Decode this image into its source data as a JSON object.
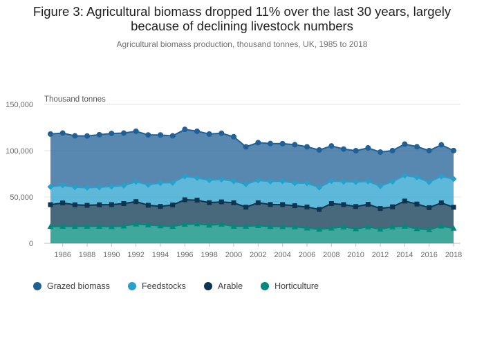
{
  "title_lines": [
    "Figure 3: Agricultural biomass dropped 11% over the last 30 years, largely",
    "because of declining livestock numbers"
  ],
  "subtitle": "Agricultural biomass production, thousand tonnes, UK, 1985 to 2018",
  "chart_data": {
    "type": "area",
    "stacked": true,
    "ylabel": "Thousand tonnes",
    "xlabel": "",
    "ylim": [
      0,
      150000
    ],
    "y_ticks": [
      0,
      50000,
      100000,
      150000
    ],
    "y_tick_labels": [
      "0",
      "50,000",
      "100,000",
      "150,000"
    ],
    "x_ticks": [
      1986,
      1988,
      1990,
      1992,
      1994,
      1996,
      1998,
      2000,
      2002,
      2004,
      2006,
      2008,
      2010,
      2012,
      2014,
      2016,
      2018
    ],
    "x": [
      1985,
      1986,
      1987,
      1988,
      1989,
      1990,
      1991,
      1992,
      1993,
      1994,
      1995,
      1996,
      1997,
      1998,
      1999,
      2000,
      2001,
      2002,
      2003,
      2004,
      2005,
      2006,
      2007,
      2008,
      2009,
      2010,
      2011,
      2012,
      2013,
      2014,
      2015,
      2016,
      2017,
      2018
    ],
    "legend_position": "bottom-left",
    "series": [
      {
        "name": "Horticulture",
        "color": "#00897c",
        "marker": "triangle",
        "values": [
          18200,
          18400,
          18200,
          18400,
          18400,
          18000,
          18700,
          20800,
          19900,
          18800,
          18200,
          20600,
          21000,
          19600,
          20600,
          18400,
          18500,
          19000,
          18100,
          18000,
          17800,
          16400,
          15200,
          16400,
          17600,
          15700,
          17700,
          15400,
          17600,
          18500,
          15800,
          14700,
          18600,
          16200
        ]
      },
      {
        "name": "Arable",
        "color": "#0b3550",
        "marker": "square",
        "values": [
          23500,
          25200,
          23400,
          22600,
          23200,
          23800,
          24200,
          24200,
          21200,
          21000,
          23200,
          26400,
          25600,
          24300,
          24100,
          25400,
          20500,
          24800,
          23800,
          23800,
          22800,
          22800,
          21400,
          26500,
          24200,
          24000,
          24400,
          22200,
          21800,
          27100,
          26600,
          23800,
          25100,
          22700
        ]
      },
      {
        "name": "Feedstocks",
        "color": "#27a0cc",
        "marker": "diamond",
        "values": [
          19300,
          19000,
          19000,
          19100,
          18900,
          19600,
          19500,
          21500,
          22100,
          25400,
          24100,
          25300,
          24000,
          24300,
          24300,
          23300,
          24900,
          24200,
          24900,
          25300,
          24400,
          25800,
          23600,
          24400,
          24800,
          26500,
          24800,
          24200,
          27200,
          27600,
          28900,
          27500,
          28600,
          30600
        ]
      },
      {
        "name": "Grazed biomass",
        "color": "#206095",
        "marker": "circle",
        "values": [
          57000,
          56400,
          55400,
          55800,
          56800,
          57200,
          56600,
          54500,
          53800,
          51800,
          50500,
          50700,
          50400,
          49800,
          49800,
          48000,
          40300,
          40700,
          40900,
          40500,
          41500,
          39200,
          40600,
          37800,
          35200,
          33800,
          36100,
          36700,
          33500,
          33900,
          33000,
          34100,
          34000,
          30600
        ]
      }
    ]
  }
}
